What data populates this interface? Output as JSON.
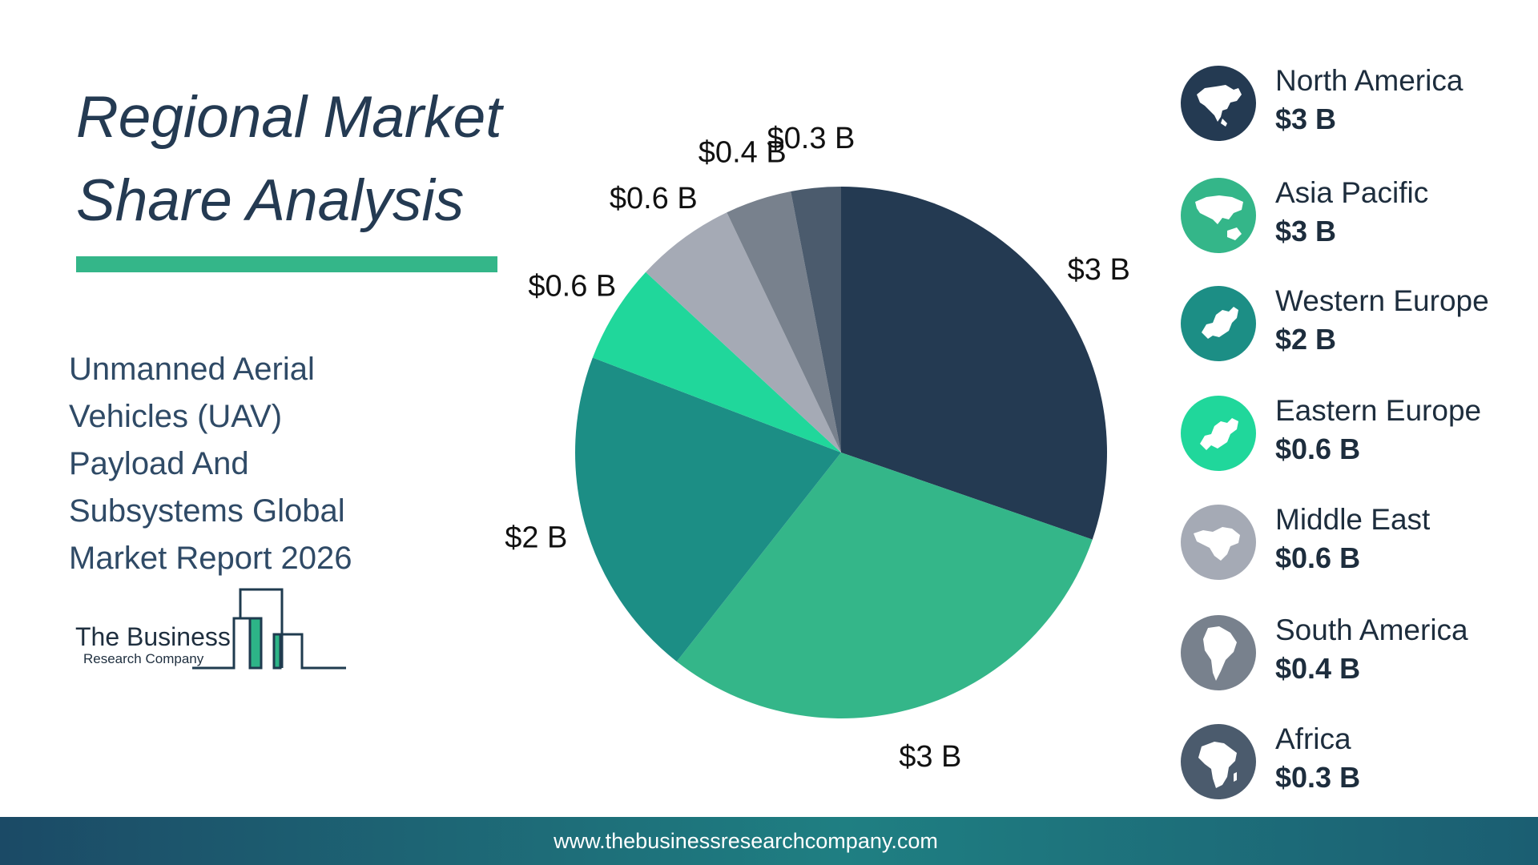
{
  "header": {
    "title_line1": "Regional Market",
    "title_line2": "Share Analysis"
  },
  "report": {
    "subtitle_lines": [
      "Unmanned Aerial",
      "Vehicles (UAV)",
      "Payload And",
      "Subsystems Global",
      "Market Report 2026"
    ]
  },
  "logo": {
    "line1": "The Business",
    "line2": "Research Company"
  },
  "chart_data": {
    "type": "pie",
    "categories": [
      "North America",
      "Asia Pacific",
      "Western Europe",
      "Eastern Europe",
      "Middle East",
      "South America",
      "Africa"
    ],
    "values": [
      3,
      3,
      2,
      0.6,
      0.6,
      0.4,
      0.3
    ],
    "labels": [
      "$3 B",
      "$3 B",
      "$2 B",
      "$0.6 B",
      "$0.6 B",
      "$0.4 B",
      "$0.3 B"
    ],
    "colors": [
      "#243a52",
      "#34b689",
      "#1c8e85",
      "#20d79b",
      "#a5aab5",
      "#78818d",
      "#4b5b6d"
    ],
    "start_angle_deg": 0,
    "direction": "clockwise",
    "legend_position": "right"
  },
  "legend": {
    "items": [
      {
        "name": "North America",
        "value": "$3 B",
        "color": "#243a52",
        "icon": "north-america-map-icon"
      },
      {
        "name": "Asia Pacific",
        "value": "$3 B",
        "color": "#34b689",
        "icon": "asia-pacific-map-icon"
      },
      {
        "name": "Western Europe",
        "value": "$2 B",
        "color": "#1c8e85",
        "icon": "western-europe-map-icon"
      },
      {
        "name": "Eastern Europe",
        "value": "$0.6 B",
        "color": "#20d79b",
        "icon": "eastern-europe-map-icon"
      },
      {
        "name": "Middle East",
        "value": "$0.6 B",
        "color": "#a5aab5",
        "icon": "middle-east-map-icon"
      },
      {
        "name": "South America",
        "value": "$0.4 B",
        "color": "#78818d",
        "icon": "south-america-map-icon"
      },
      {
        "name": "Africa",
        "value": "$0.3 B",
        "color": "#4b5b6d",
        "icon": "africa-map-icon"
      }
    ]
  },
  "footer": {
    "url": "www.thebusinessresearchcompany.com"
  }
}
